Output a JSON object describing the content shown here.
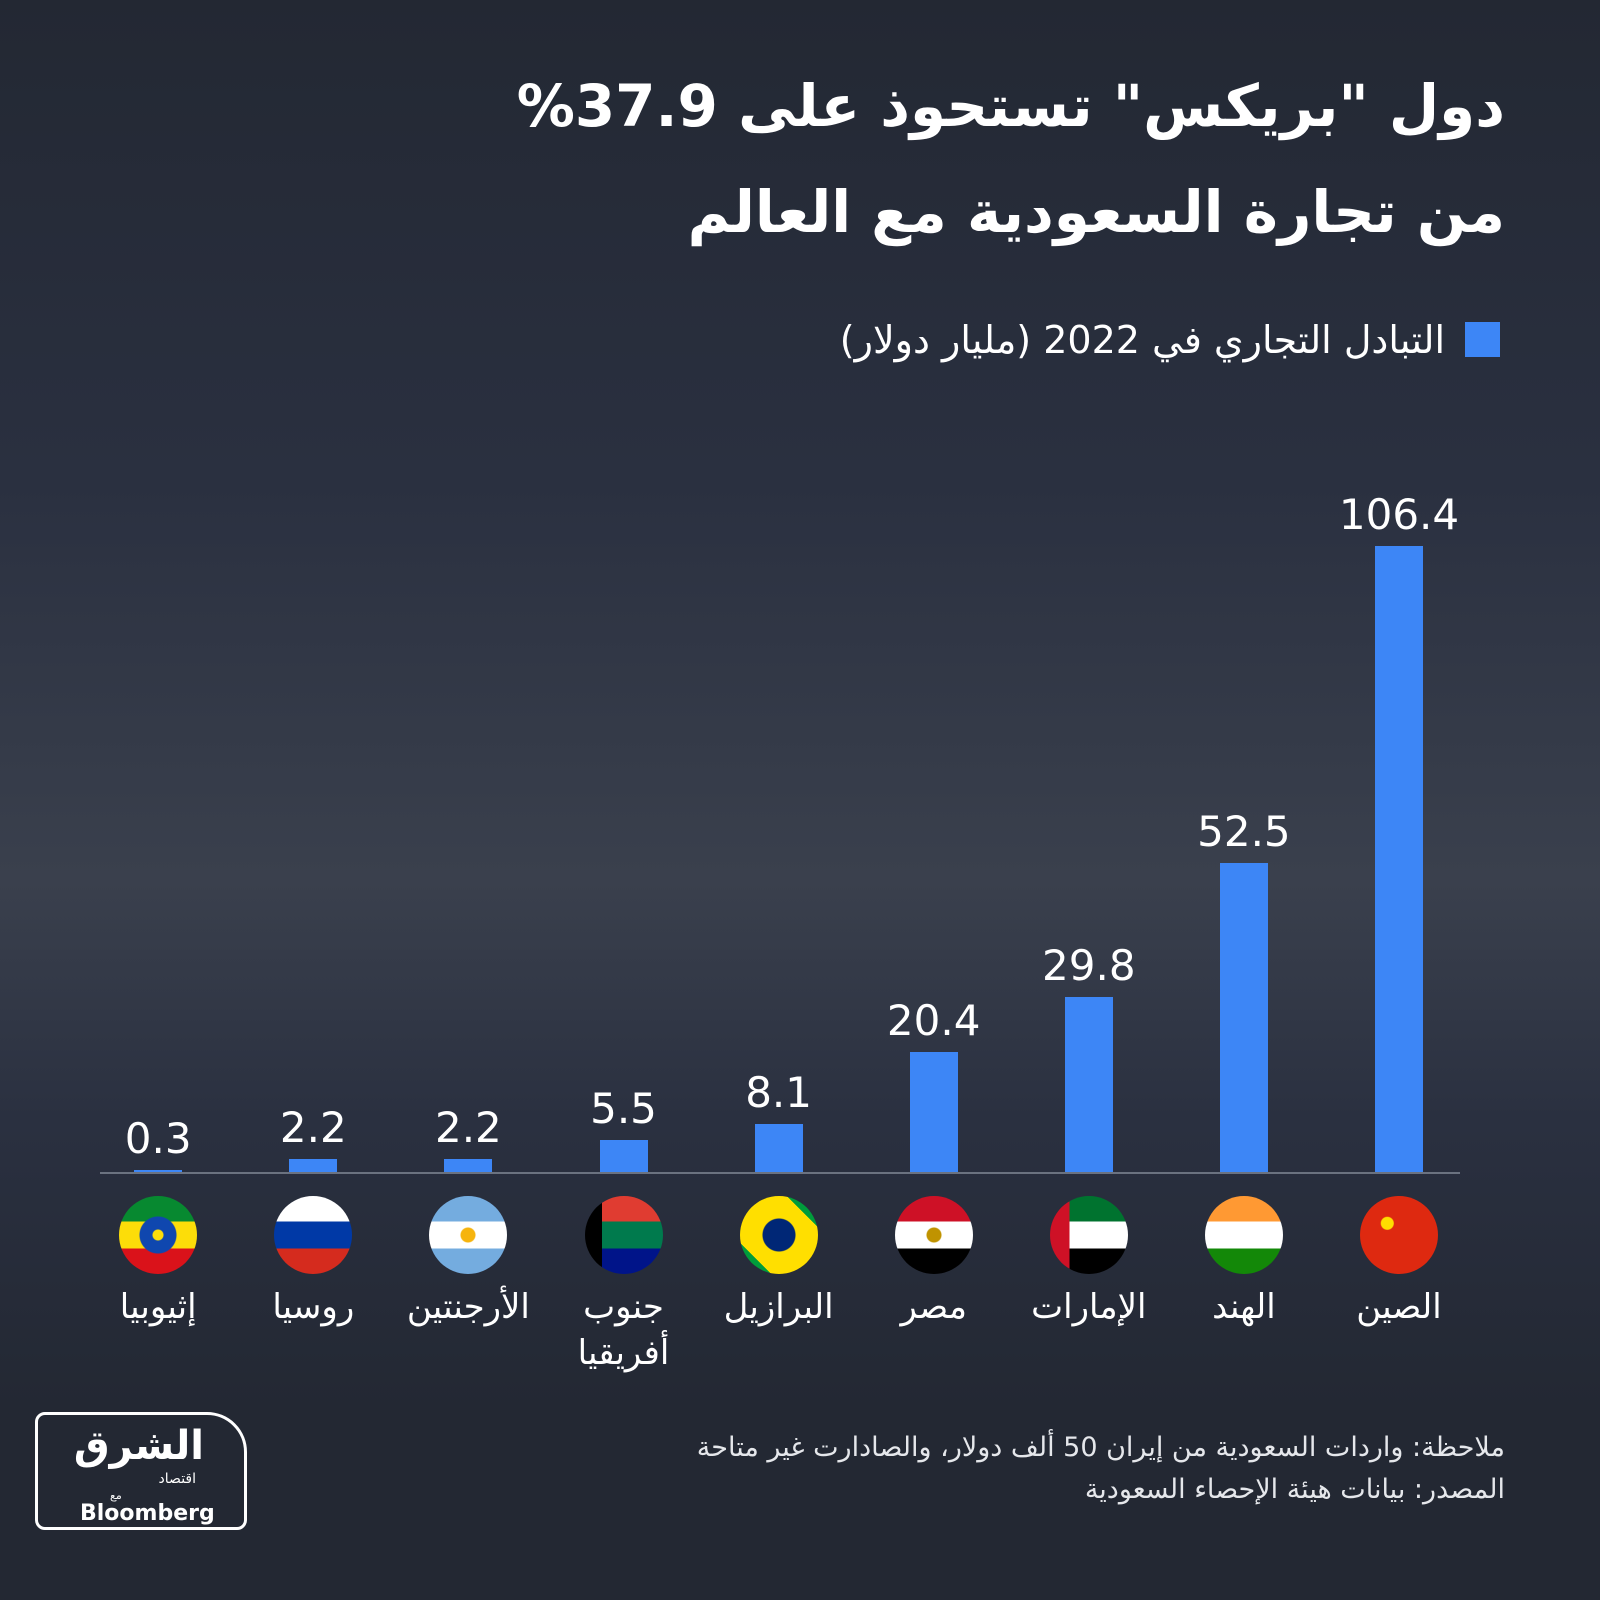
{
  "chart_data": {
    "type": "bar",
    "title": [
      "دول \"بريكس\" تستحوذ على 37.9%",
      "من تجارة السعودية مع العالم"
    ],
    "categories": [
      "الصين",
      "الهند",
      "الإمارات",
      "مصر",
      "البرازيل",
      "جنوب أفريقيا",
      "الأرجنتين",
      "روسيا",
      "إثيوبيا"
    ],
    "series": [
      {
        "name": "التبادل التجاري في 2022 (مليار دولار)",
        "color": "#3d86f6",
        "values": [
          106.4,
          52.5,
          29.8,
          20.4,
          8.1,
          5.5,
          2.2,
          2.2,
          0.3
        ]
      }
    ],
    "note": "ملاحظة: واردات السعودية من إيران 50 ألف دولار، والصادارت  غير متاحة",
    "source": "المصدر: بيانات هيئة الإحصاء السعودية"
  },
  "logo": {
    "name": "الشرق",
    "sub": "اقتصاد",
    "with": "مع",
    "partner": "Bloomberg"
  }
}
